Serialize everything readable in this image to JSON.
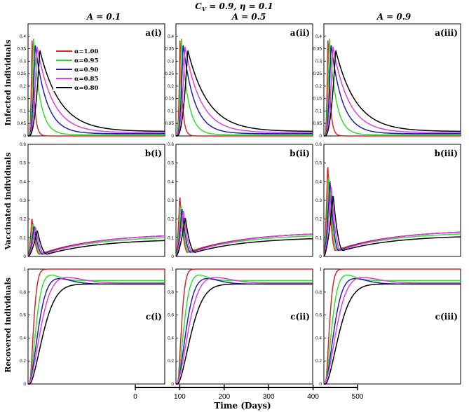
{
  "title": "C_V = 0.9, η = 0.1",
  "title_parts": {
    "c": "C",
    "v": "V",
    "rest": " = 0.9, η = 0.1"
  },
  "column_titles": [
    "A = 0.1",
    "A = 0.5",
    "A = 0.9"
  ],
  "row_labels": [
    "Infected individuals",
    "Vaccinated individuals",
    "Recovered individuals"
  ],
  "panel_labels": [
    [
      "a(i)",
      "a(ii)",
      "a(iii)"
    ],
    [
      "b(i)",
      "b(ii)",
      "b(iii)"
    ],
    [
      "c(i)",
      "c(ii)",
      "c(iii)"
    ]
  ],
  "colors": {
    "alpha_1_00": "#d62728",
    "alpha_0_95": "#33dd33",
    "alpha_0_90": "#1f1fb4",
    "alpha_0_85": "#e040e0",
    "alpha_0_80": "#000000"
  },
  "chart_data": {
    "type": "line",
    "xlabel": "Time (Days)",
    "x_axis": {
      "range": [
        0,
        500
      ],
      "ticks": [
        0,
        100,
        200,
        300,
        400,
        500
      ]
    },
    "legend": {
      "placement": "inside top-left of panel a(i)",
      "entries": [
        "α=1.00",
        "α=0.95",
        "α=0.90",
        "α=0.85",
        "α=0.80"
      ]
    },
    "y_axes": [
      {
        "row": "infected",
        "range": [
          0,
          0.45
        ],
        "ticks": [
          "0",
          "0.05",
          "0.1",
          "0.15",
          "0.2",
          "0.25",
          "0.3",
          "0.35",
          "0.4"
        ]
      },
      {
        "row": "vaccinated",
        "range": [
          0,
          0.6
        ],
        "ticks": [
          "0",
          "0.1",
          "0.2",
          "0.3",
          "0.4",
          "0.5",
          "0.6"
        ]
      },
      {
        "row": "recovered",
        "range": [
          0,
          1
        ],
        "ticks": [
          "0",
          "0.2",
          "0.4",
          "0.6",
          "0.8",
          "1"
        ]
      }
    ],
    "series": [
      {
        "name": "α=1.00",
        "alpha": 1.0,
        "infected_peak": {
          "t": 15,
          "value": 0.41
        },
        "vaccinated_peak": {
          "t": 14,
          "values_by_A": [
            0.21,
            0.33,
            0.5
          ]
        },
        "vaccinated_end": 0.11,
        "recovered_plateau": 1.0
      },
      {
        "name": "α=0.95",
        "alpha": 0.95,
        "infected_peak": {
          "t": 20,
          "value": 0.39
        },
        "vaccinated_peak": {
          "t": 18,
          "values_by_A": [
            0.18,
            0.28,
            0.44
          ]
        },
        "vaccinated_end": 0.1,
        "recovered_plateau": 0.9
      },
      {
        "name": "α=0.90",
        "alpha": 0.9,
        "infected_peak": {
          "t": 26,
          "value": 0.37
        },
        "vaccinated_peak": {
          "t": 22,
          "values_by_A": [
            0.165,
            0.26,
            0.41
          ]
        },
        "vaccinated_end": 0.11,
        "recovered_plateau": 0.87
      },
      {
        "name": "α=0.85",
        "alpha": 0.85,
        "infected_peak": {
          "t": 33,
          "value": 0.36
        },
        "vaccinated_peak": {
          "t": 27,
          "values_by_A": [
            0.16,
            0.25,
            0.38
          ]
        },
        "vaccinated_end": 0.11,
        "recovered_plateau": 0.88
      },
      {
        "name": "α=0.80",
        "alpha": 0.8,
        "infected_peak": {
          "t": 43,
          "value": 0.345
        },
        "vaccinated_peak": {
          "t": 34,
          "values_by_A": [
            0.14,
            0.21,
            0.33
          ]
        },
        "vaccinated_end": 0.085,
        "recovered_plateau": 0.87
      }
    ]
  }
}
